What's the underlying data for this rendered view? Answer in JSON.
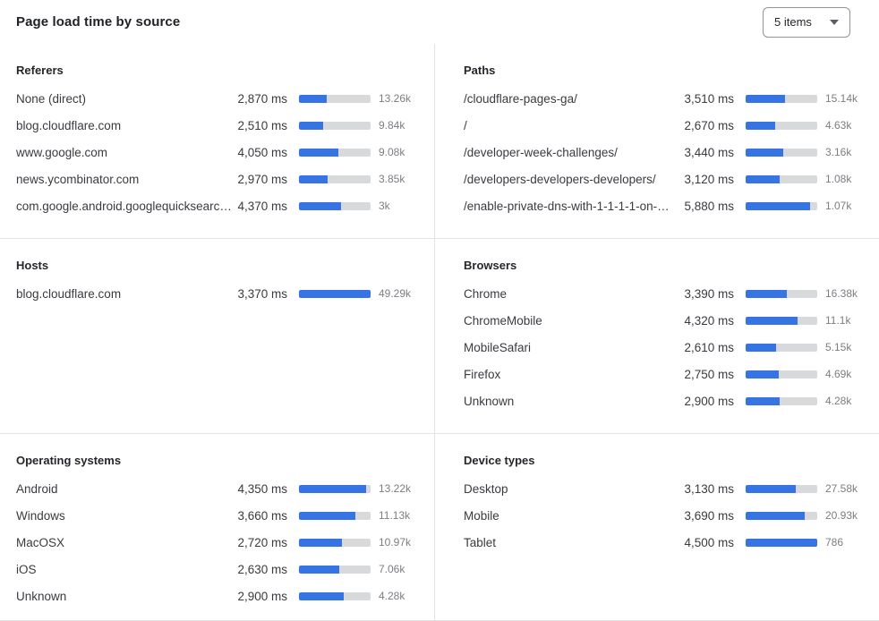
{
  "header": {
    "title": "Page load time by source",
    "items_dropdown": {
      "selected": "5 items"
    }
  },
  "colors": {
    "bar_fill": "#3574e2",
    "bar_track": "#d8d9db",
    "divider": "#e2e3e5"
  },
  "panels": [
    {
      "id": "referers",
      "title": "Referers",
      "rows": [
        {
          "label": "None (direct)",
          "value": "2,870 ms",
          "count": "13.26k",
          "bar_pct": 39
        },
        {
          "label": "blog.cloudflare.com",
          "value": "2,510 ms",
          "count": "9.84k",
          "bar_pct": 34
        },
        {
          "label": "www.google.com",
          "value": "4,050 ms",
          "count": "9.08k",
          "bar_pct": 55
        },
        {
          "label": "news.ycombinator.com",
          "value": "2,970 ms",
          "count": "3.85k",
          "bar_pct": 40
        },
        {
          "label": "com.google.android.googlequicksearc…",
          "value": "4,370 ms",
          "count": "3k",
          "bar_pct": 59
        }
      ]
    },
    {
      "id": "paths",
      "title": "Paths",
      "rows": [
        {
          "label": "/cloudflare-pages-ga/",
          "value": "3,510 ms",
          "count": "15.14k",
          "bar_pct": 55
        },
        {
          "label": "/",
          "value": "2,670 ms",
          "count": "4.63k",
          "bar_pct": 41
        },
        {
          "label": "/developer-week-challenges/",
          "value": "3,440 ms",
          "count": "3.16k",
          "bar_pct": 53
        },
        {
          "label": "/developers-developers-developers/",
          "value": "3,120 ms",
          "count": "1.08k",
          "bar_pct": 48
        },
        {
          "label": "/enable-private-dns-with-1-1-1-1-on-…",
          "value": "5,880 ms",
          "count": "1.07k",
          "bar_pct": 90
        }
      ]
    },
    {
      "id": "hosts",
      "title": "Hosts",
      "rows": [
        {
          "label": "blog.cloudflare.com",
          "value": "3,370 ms",
          "count": "49.29k",
          "bar_pct": 100
        }
      ]
    },
    {
      "id": "browsers",
      "title": "Browsers",
      "rows": [
        {
          "label": "Chrome",
          "value": "3,390 ms",
          "count": "16.38k",
          "bar_pct": 57
        },
        {
          "label": "ChromeMobile",
          "value": "4,320 ms",
          "count": "11.1k",
          "bar_pct": 72
        },
        {
          "label": "MobileSafari",
          "value": "2,610 ms",
          "count": "5.15k",
          "bar_pct": 43
        },
        {
          "label": "Firefox",
          "value": "2,750 ms",
          "count": "4.69k",
          "bar_pct": 46
        },
        {
          "label": "Unknown",
          "value": "2,900 ms",
          "count": "4.28k",
          "bar_pct": 48
        }
      ]
    },
    {
      "id": "operating-systems",
      "title": "Operating systems",
      "rows": [
        {
          "label": "Android",
          "value": "4,350 ms",
          "count": "13.22k",
          "bar_pct": 94
        },
        {
          "label": "Windows",
          "value": "3,660 ms",
          "count": "11.13k",
          "bar_pct": 79
        },
        {
          "label": "MacOSX",
          "value": "2,720 ms",
          "count": "10.97k",
          "bar_pct": 60
        },
        {
          "label": "iOS",
          "value": "2,630 ms",
          "count": "7.06k",
          "bar_pct": 56
        },
        {
          "label": "Unknown",
          "value": "2,900 ms",
          "count": "4.28k",
          "bar_pct": 63
        }
      ]
    },
    {
      "id": "device-types",
      "title": "Device types",
      "rows": [
        {
          "label": "Desktop",
          "value": "3,130 ms",
          "count": "27.58k",
          "bar_pct": 70
        },
        {
          "label": "Mobile",
          "value": "3,690 ms",
          "count": "20.93k",
          "bar_pct": 83
        },
        {
          "label": "Tablet",
          "value": "4,500 ms",
          "count": "786",
          "bar_pct": 100
        }
      ]
    }
  ],
  "chart_data": [
    {
      "type": "bar",
      "title": "Referers",
      "categories": [
        "None (direct)",
        "blog.cloudflare.com",
        "www.google.com",
        "news.ycombinator.com",
        "com.google.android.googlequicksearc…"
      ],
      "values_ms": [
        2870,
        2510,
        4050,
        2970,
        4370
      ],
      "counts": [
        13260,
        9840,
        9080,
        3850,
        3000
      ],
      "unit": "ms"
    },
    {
      "type": "bar",
      "title": "Paths",
      "categories": [
        "/cloudflare-pages-ga/",
        "/",
        "/developer-week-challenges/",
        "/developers-developers-developers/",
        "/enable-private-dns-with-1-1-1-1-on-…"
      ],
      "values_ms": [
        3510,
        2670,
        3440,
        3120,
        5880
      ],
      "counts": [
        15140,
        4630,
        3160,
        1080,
        1070
      ],
      "unit": "ms"
    },
    {
      "type": "bar",
      "title": "Hosts",
      "categories": [
        "blog.cloudflare.com"
      ],
      "values_ms": [
        3370
      ],
      "counts": [
        49290
      ],
      "unit": "ms"
    },
    {
      "type": "bar",
      "title": "Browsers",
      "categories": [
        "Chrome",
        "ChromeMobile",
        "MobileSafari",
        "Firefox",
        "Unknown"
      ],
      "values_ms": [
        3390,
        4320,
        2610,
        2750,
        2900
      ],
      "counts": [
        16380,
        11100,
        5150,
        4690,
        4280
      ],
      "unit": "ms"
    },
    {
      "type": "bar",
      "title": "Operating systems",
      "categories": [
        "Android",
        "Windows",
        "MacOSX",
        "iOS",
        "Unknown"
      ],
      "values_ms": [
        4350,
        3660,
        2720,
        2630,
        2900
      ],
      "counts": [
        13220,
        11130,
        10970,
        7060,
        4280
      ],
      "unit": "ms"
    },
    {
      "type": "bar",
      "title": "Device types",
      "categories": [
        "Desktop",
        "Mobile",
        "Tablet"
      ],
      "values_ms": [
        3130,
        3690,
        4500
      ],
      "counts": [
        27580,
        20930,
        786
      ],
      "unit": "ms"
    }
  ]
}
